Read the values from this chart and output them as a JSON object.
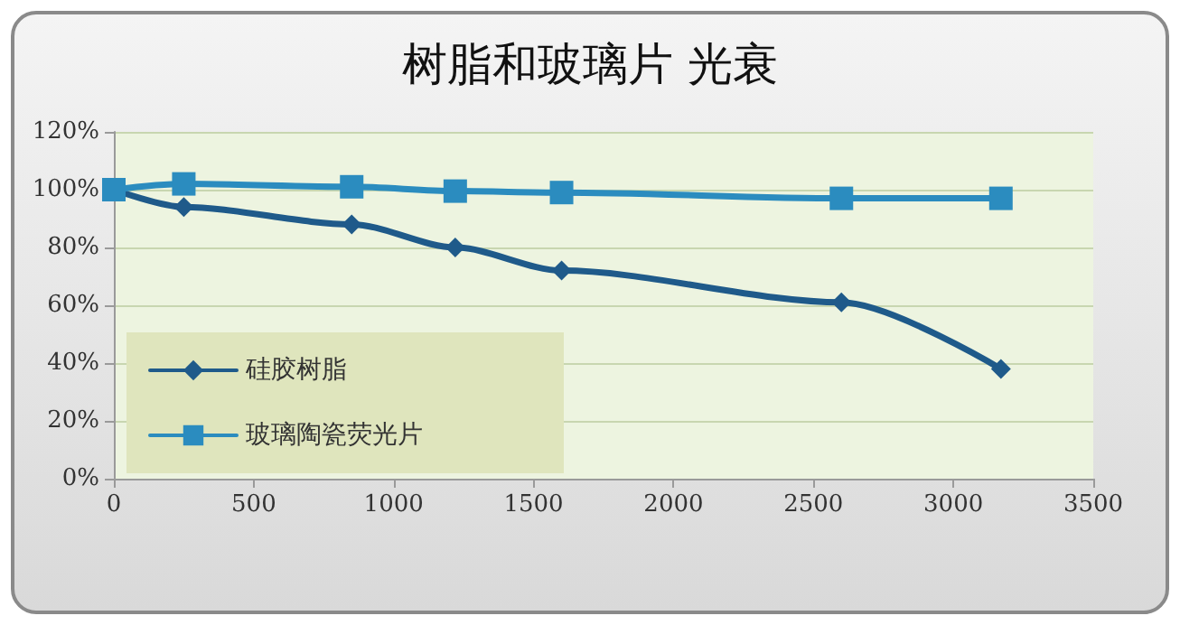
{
  "chart_data": {
    "type": "line",
    "title": "树脂和玻璃片 光衰",
    "x": [
      0,
      250,
      850,
      1220,
      1600,
      2600,
      3170
    ],
    "series": [
      {
        "name": "硅胶树脂",
        "color": "#1f5a8a",
        "marker": "diamond",
        "values": [
          100,
          94,
          88,
          80,
          72,
          61,
          38
        ]
      },
      {
        "name": "玻璃陶瓷荧光片",
        "color": "#2b8cbf",
        "marker": "square",
        "values": [
          100,
          102,
          101,
          99.5,
          99,
          97,
          97
        ]
      }
    ],
    "xlim": [
      0,
      3500
    ],
    "xticks": [
      0,
      500,
      1000,
      1500,
      2000,
      2500,
      3000,
      3500
    ],
    "ylim": [
      0,
      120
    ],
    "yticks": [
      {
        "value": 0,
        "label": "0%"
      },
      {
        "value": 20,
        "label": "20%"
      },
      {
        "value": 40,
        "label": "40%"
      },
      {
        "value": 60,
        "label": "60%"
      },
      {
        "value": 80,
        "label": "80%"
      },
      {
        "value": 100,
        "label": "100%"
      },
      {
        "value": 120,
        "label": "120%"
      }
    ],
    "grid": "y",
    "legend": "bottom left",
    "line_style": "solid"
  }
}
